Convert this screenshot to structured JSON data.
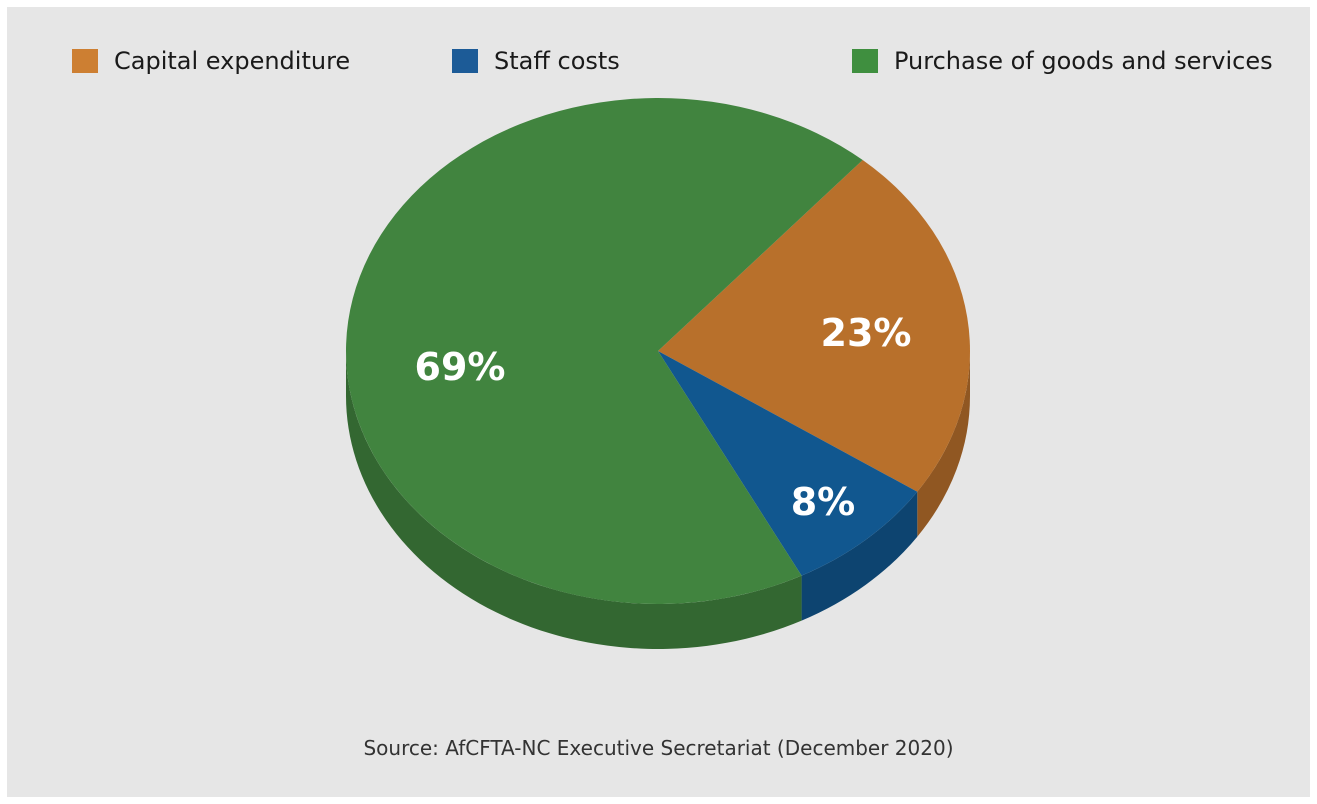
{
  "chart_data": {
    "type": "pie",
    "series": [
      {
        "name": "Capital expenditure",
        "value": 23,
        "label": "23%",
        "color": "#b8702b"
      },
      {
        "name": "Staff costs",
        "value": 8,
        "label": "8%",
        "color": "#11578f"
      },
      {
        "name": "Purchase of goods and services",
        "value": 69,
        "label": "69%",
        "color": "#41843f"
      }
    ],
    "legend_position": "top",
    "three_d": true,
    "background": "#e6e6e6"
  },
  "legend": {
    "items": [
      {
        "label": "Capital expenditure",
        "color": "#cd7f32"
      },
      {
        "label": "Staff costs",
        "color": "#1c5b97"
      },
      {
        "label": "Purchase of goods and services",
        "color": "#3f8f3f"
      }
    ]
  },
  "source": "Source: AfCFTA-NC Executive Secretariat (December 2020)"
}
